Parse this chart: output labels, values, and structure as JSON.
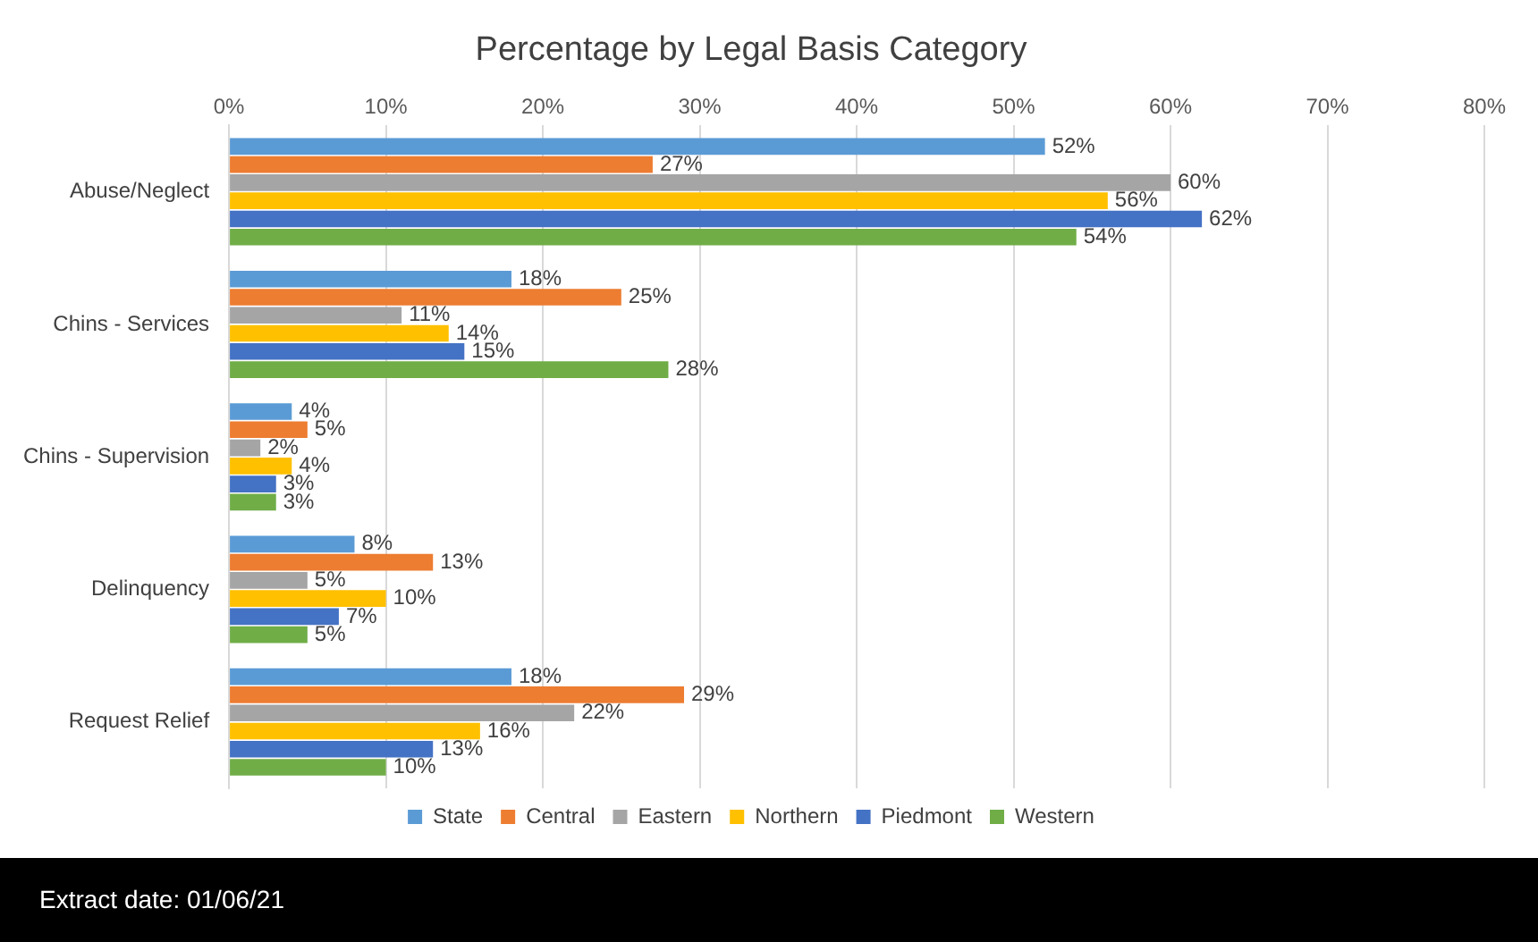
{
  "chart_data": {
    "type": "bar",
    "orientation": "horizontal",
    "title": "Percentage by Legal Basis Category",
    "categories": [
      "Abuse/Neglect",
      "Chins - Services",
      "Chins - Supervision",
      "Delinquency",
      "Request Relief"
    ],
    "series": [
      {
        "name": "State",
        "color": "#5b9bd5",
        "values": [
          52,
          18,
          4,
          8,
          18
        ],
        "value_labels": [
          "52%",
          "18%",
          "4%",
          "8%",
          "18%"
        ]
      },
      {
        "name": "Central",
        "color": "#ed7d31",
        "values": [
          27,
          25,
          5,
          13,
          29
        ],
        "value_labels": [
          "27%",
          "25%",
          "5%",
          "13%",
          "29%"
        ]
      },
      {
        "name": "Eastern",
        "color": "#a5a5a5",
        "values": [
          60,
          11,
          2,
          5,
          22
        ],
        "value_labels": [
          "60%",
          "11%",
          "2%",
          "5%",
          "22%"
        ]
      },
      {
        "name": "Northern",
        "color": "#ffc000",
        "values": [
          56,
          14,
          4,
          10,
          16
        ],
        "value_labels": [
          "56%",
          "14%",
          "4%",
          "10%",
          "16%"
        ]
      },
      {
        "name": "Piedmont",
        "color": "#4472c4",
        "values": [
          62,
          15,
          3,
          7,
          13
        ],
        "value_labels": [
          "62%",
          "15%",
          "3%",
          "7%",
          "13%"
        ]
      },
      {
        "name": "Western",
        "color": "#70ad47",
        "values": [
          54,
          28,
          3,
          5,
          10
        ],
        "value_labels": [
          "54%",
          "28%",
          "3%",
          "5%",
          "10%"
        ]
      }
    ],
    "xlim": [
      0,
      80
    ],
    "xticks": [
      {
        "value": 0,
        "label": "0%"
      },
      {
        "value": 10,
        "label": "10%"
      },
      {
        "value": 20,
        "label": "20%"
      },
      {
        "value": 30,
        "label": "30%"
      },
      {
        "value": 40,
        "label": "40%"
      },
      {
        "value": 50,
        "label": "50%"
      },
      {
        "value": 60,
        "label": "60%"
      },
      {
        "value": 70,
        "label": "70%"
      },
      {
        "value": 80,
        "label": "80%"
      }
    ],
    "grid": "x",
    "legend": "bottom",
    "annotations": [
      "Extract date: 01/06/21"
    ]
  }
}
